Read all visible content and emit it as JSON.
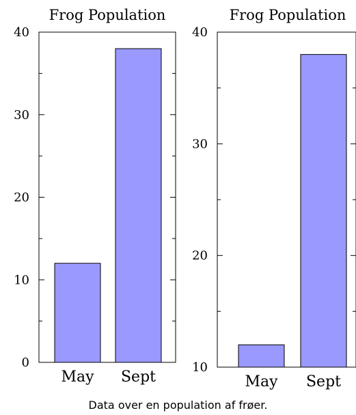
{
  "caption": "Data over en population af frøer.",
  "colors": {
    "bar_fill": "#9999ff",
    "bar_stroke": "#000000",
    "axis": "#000000"
  },
  "chart_data": [
    {
      "type": "bar",
      "title": "Frog Population",
      "xlabel": "",
      "ylabel": "",
      "categories": [
        "May",
        "Sept"
      ],
      "values": [
        12,
        38
      ],
      "ylim": [
        0,
        40
      ],
      "yticks": [
        0,
        10,
        20,
        30,
        40
      ],
      "grid": false,
      "legend": "none"
    },
    {
      "type": "bar",
      "title": "Frog Population",
      "xlabel": "",
      "ylabel": "",
      "categories": [
        "May",
        "Sept"
      ],
      "values": [
        12,
        38
      ],
      "ylim": [
        10,
        40
      ],
      "yticks": [
        10,
        20,
        30,
        40
      ],
      "grid": false,
      "legend": "none"
    }
  ]
}
